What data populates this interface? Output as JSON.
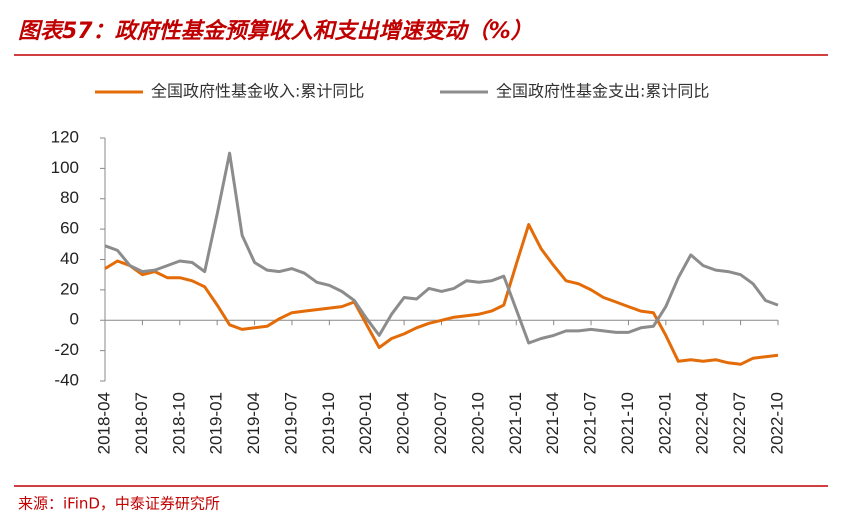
{
  "chart_data": {
    "type": "line",
    "title": "图表57：政府性基金预算收入和支出增速变动（%）",
    "source": "来源：iFinD，中泰证券研究所",
    "categories": [
      "2018-04",
      null,
      null,
      "2018-07",
      null,
      null,
      "2018-10",
      null,
      null,
      "2019-01",
      null,
      null,
      "2019-04",
      null,
      null,
      "2019-07",
      null,
      null,
      "2019-10",
      null,
      null,
      "2020-01",
      null,
      null,
      "2020-04",
      null,
      null,
      "2020-07",
      null,
      null,
      "2020-10",
      null,
      null,
      "2021-01",
      null,
      null,
      "2021-04",
      null,
      null,
      "2021-07",
      null,
      null,
      "2021-10",
      null,
      null,
      "2022-01",
      null,
      null,
      "2022-04",
      null,
      null,
      "2022-07",
      null,
      null,
      "2022-10"
    ],
    "series": [
      {
        "name": "全国政府性基金收入:累计同比",
        "color": "#e36c09",
        "values": [
          34,
          39,
          36,
          30,
          32,
          28,
          28,
          26,
          22,
          10,
          -3,
          -6,
          -5,
          -4,
          1,
          5,
          6,
          7,
          8,
          9,
          12,
          -3,
          -18,
          -12,
          -9,
          -5,
          -2,
          0,
          2,
          3,
          4,
          6,
          10,
          37,
          63,
          47,
          36,
          26,
          24,
          20,
          15,
          12,
          9,
          6,
          5,
          -10,
          -27,
          -26,
          -27,
          -26,
          -28,
          -29,
          -25,
          -24,
          -23
        ]
      },
      {
        "name": "全国政府性基金支出:累计同比",
        "color": "#8c8c8c",
        "values": [
          49,
          46,
          36,
          32,
          33,
          36,
          39,
          38,
          32,
          70,
          110,
          56,
          38,
          33,
          32,
          34,
          31,
          25,
          23,
          19,
          13,
          1,
          -10,
          4,
          15,
          14,
          21,
          19,
          21,
          26,
          25,
          26,
          29,
          7,
          -15,
          -12,
          -10,
          -7,
          -7,
          -6,
          -7,
          -8,
          -8,
          -5,
          -4,
          9,
          28,
          43,
          36,
          33,
          32,
          30,
          24,
          13,
          10
        ]
      }
    ],
    "ylim": [
      -40,
      120
    ],
    "yticks": [
      -40,
      -20,
      0,
      20,
      40,
      60,
      80,
      100,
      120
    ]
  }
}
